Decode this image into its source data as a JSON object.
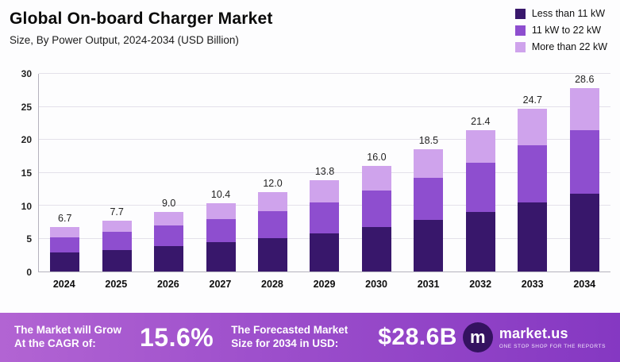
{
  "header": {
    "title": "Global On-board Charger Market",
    "subtitle": "Size, By Power Output, 2024-2034 (USD Billion)"
  },
  "chart_data": {
    "type": "bar",
    "stacked": true,
    "title": "Global On-board Charger Market",
    "subtitle": "Size, By Power Output, 2024-2034 (USD Billion)",
    "unit": "USD Billion",
    "categories": [
      "2024",
      "2025",
      "2026",
      "2027",
      "2028",
      "2029",
      "2030",
      "2031",
      "2032",
      "2033",
      "2034"
    ],
    "series": [
      {
        "name": "Less than 11 kW",
        "color": "#38176b",
        "values": [
          2.9,
          3.3,
          3.8,
          4.4,
          5.0,
          5.8,
          6.7,
          7.8,
          9.0,
          10.5,
          12.1
        ]
      },
      {
        "name": "11 kW to 22 kW",
        "color": "#8e4ecf",
        "values": [
          2.3,
          2.7,
          3.2,
          3.5,
          4.2,
          4.7,
          5.6,
          6.4,
          7.5,
          8.6,
          10.0
        ]
      },
      {
        "name": "More than 22 kW",
        "color": "#cfa3ec",
        "values": [
          1.5,
          1.7,
          2.0,
          2.5,
          2.8,
          3.3,
          3.7,
          4.3,
          4.9,
          5.6,
          6.5
        ]
      }
    ],
    "totals": [
      6.7,
      7.7,
      9.0,
      10.4,
      12.0,
      13.8,
      16.0,
      18.5,
      21.4,
      24.7,
      28.6
    ],
    "ylim": [
      0,
      30
    ],
    "yticks": [
      0,
      5,
      10,
      15,
      20,
      25,
      30
    ],
    "grid": true,
    "legend_position": "top-right"
  },
  "footer": {
    "cagr_label": "The Market will Grow At the CAGR of:",
    "cagr_value": "15.6%",
    "forecast_label": "The Forecasted Market Size for 2034 in USD:",
    "forecast_value": "$28.6B",
    "brand": "market.us",
    "brand_mark": "m",
    "brand_tagline": "One Stop Shop For The Reports"
  }
}
